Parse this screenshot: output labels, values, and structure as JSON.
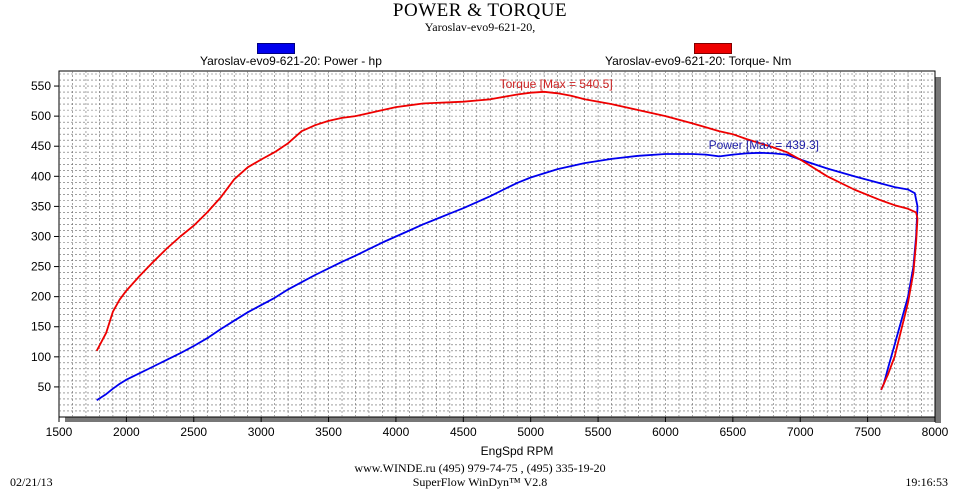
{
  "header": {
    "title": "POWER & TORQUE",
    "subtitle": "Yaroslav-evo9-621-20,"
  },
  "legend": {
    "power_label": "Yaroslav-evo9-621-20: Power -  hp",
    "torque_label": "Yaroslav-evo9-621-20: Torque-  Nm",
    "power_color": "#0000ee",
    "torque_color": "#ee0000"
  },
  "footer": {
    "url_line": "www.WINDE.ru  (495) 979-74-75 , (495) 335-19-20",
    "software": "SuperFlow WinDyn™ V2.8",
    "date": "02/21/13",
    "time": "19:16:53"
  },
  "chart_data": {
    "type": "line",
    "title": "POWER & TORQUE",
    "subtitle": "Yaroslav-evo9-621-20,",
    "xlabel": "EngSpd  RPM",
    "ylabel": "",
    "xlim": [
      1500,
      8000
    ],
    "ylim": [
      0,
      575
    ],
    "x_ticks": [
      1500,
      2000,
      2500,
      3000,
      3500,
      4000,
      4500,
      5000,
      5500,
      6000,
      6500,
      7000,
      7500,
      8000
    ],
    "y_ticks": [
      50,
      100,
      150,
      200,
      250,
      300,
      350,
      400,
      450,
      500,
      550
    ],
    "grid": true,
    "legend": "top",
    "annotations": [
      {
        "text": "Torque [Max = 540.5]",
        "series": "torque",
        "color": "#cc2222"
      },
      {
        "text": "Power  [Max = 439.3]",
        "series": "power",
        "color": "#2222aa"
      }
    ],
    "series": [
      {
        "name": "Yaroslav-evo9-621-20: Power -  hp",
        "key": "power",
        "color": "#0000ee",
        "x": [
          1780,
          1850,
          1900,
          1950,
          2000,
          2100,
          2200,
          2300,
          2400,
          2500,
          2600,
          2700,
          2800,
          2900,
          3000,
          3100,
          3200,
          3300,
          3400,
          3500,
          3600,
          3700,
          3800,
          3900,
          4000,
          4100,
          4200,
          4300,
          4400,
          4500,
          4600,
          4700,
          4800,
          4900,
          5000,
          5200,
          5400,
          5600,
          5800,
          6000,
          6200,
          6300,
          6400,
          6500,
          6600,
          6700,
          6800,
          6900,
          7000,
          7200,
          7400,
          7600,
          7700,
          7800,
          7850,
          7870,
          7860,
          7840,
          7800,
          7750,
          7700,
          7650,
          7620,
          7600
        ],
        "y": [
          28,
          38,
          47,
          55,
          62,
          73,
          84,
          95,
          106,
          118,
          131,
          146,
          160,
          174,
          186,
          198,
          212,
          224,
          236,
          247,
          258,
          268,
          279,
          290,
          300,
          310,
          320,
          329,
          338,
          347,
          357,
          367,
          378,
          389,
          398,
          412,
          422,
          429,
          434,
          437,
          437,
          436,
          433,
          436,
          438,
          439,
          438,
          436,
          428,
          413,
          400,
          388,
          382,
          378,
          372,
          350,
          300,
          250,
          200,
          160,
          120,
          80,
          55,
          45
        ]
      },
      {
        "name": "Yaroslav-evo9-621-20: Torque-  Nm",
        "key": "torque",
        "color": "#ee0000",
        "x": [
          1780,
          1850,
          1900,
          1950,
          2000,
          2100,
          2200,
          2300,
          2400,
          2500,
          2600,
          2700,
          2800,
          2900,
          3000,
          3100,
          3200,
          3300,
          3400,
          3500,
          3600,
          3700,
          3800,
          3900,
          4000,
          4100,
          4200,
          4300,
          4400,
          4500,
          4600,
          4700,
          4800,
          4900,
          5000,
          5100,
          5200,
          5300,
          5400,
          5600,
          5800,
          6000,
          6200,
          6400,
          6500,
          6600,
          6700,
          6800,
          6900,
          7000,
          7200,
          7400,
          7600,
          7700,
          7800,
          7860,
          7870,
          7860,
          7840,
          7800,
          7750,
          7700,
          7650,
          7620,
          7600
        ],
        "y": [
          110,
          140,
          175,
          195,
          210,
          235,
          258,
          280,
          300,
          318,
          340,
          365,
          395,
          415,
          428,
          440,
          455,
          475,
          485,
          492,
          497,
          500,
          505,
          510,
          515,
          518,
          521,
          522,
          523,
          524,
          526,
          528,
          532,
          536,
          539,
          540.5,
          538,
          534,
          528,
          520,
          510,
          500,
          488,
          475,
          470,
          462,
          455,
          448,
          440,
          428,
          400,
          378,
          360,
          352,
          346,
          340,
          330,
          290,
          240,
          190,
          145,
          100,
          70,
          55,
          45
        ]
      }
    ]
  }
}
